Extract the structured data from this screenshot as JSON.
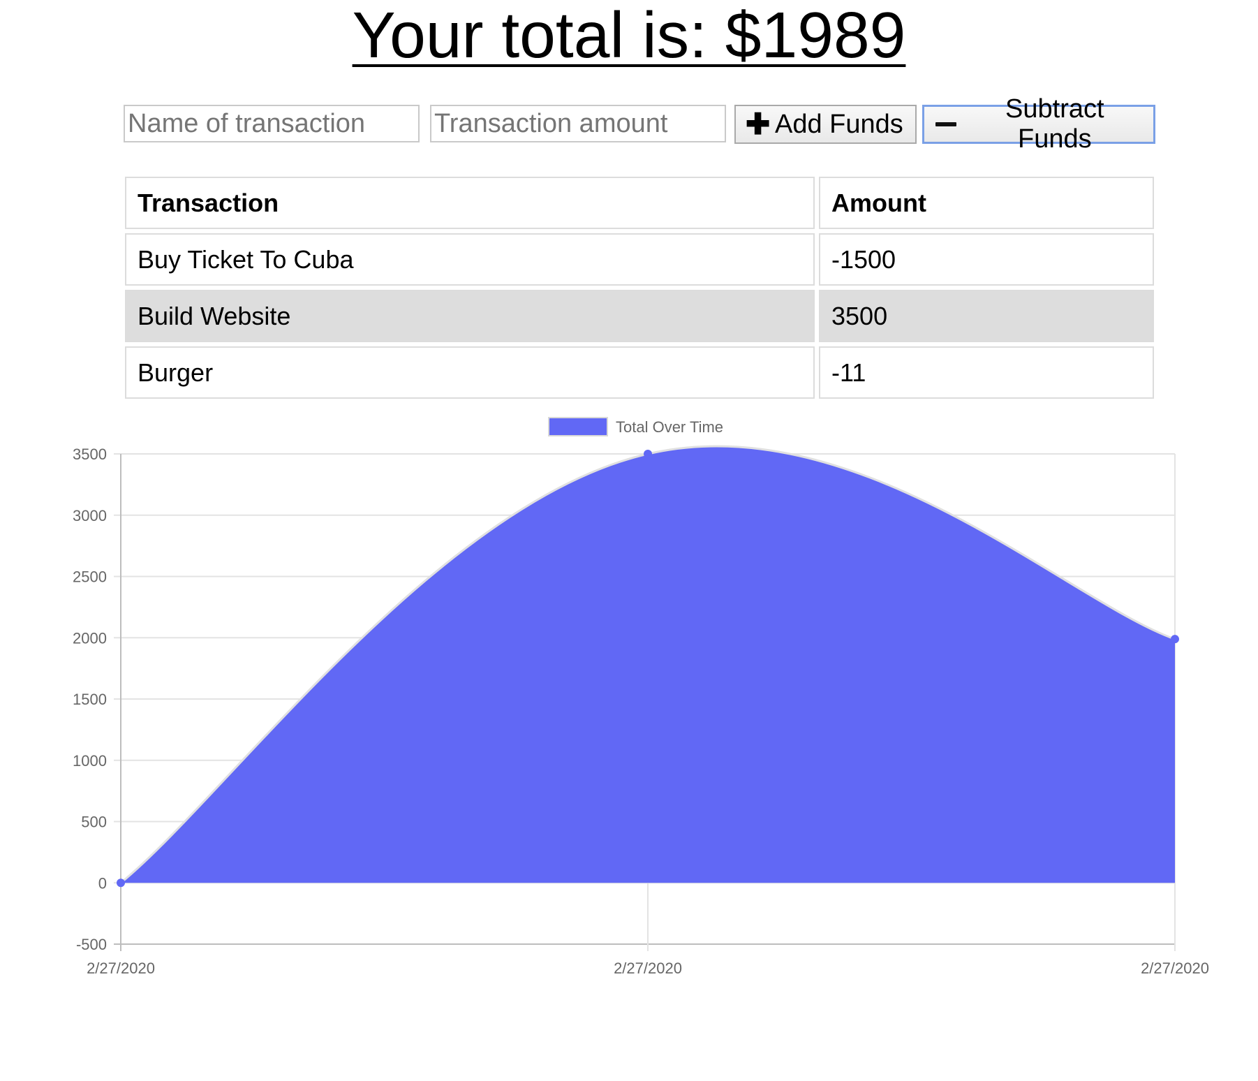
{
  "header": {
    "title": "Your total is: $1989"
  },
  "form": {
    "name_placeholder": "Name of transaction",
    "amount_placeholder": "Transaction amount",
    "add_label": "Add Funds",
    "subtract_label": "Subtract Funds",
    "add_icon": "plus-icon",
    "subtract_icon": "minus-icon"
  },
  "table": {
    "headers": [
      "Transaction",
      "Amount"
    ],
    "rows": [
      {
        "name": "Buy Ticket To Cuba",
        "amount": "-1500"
      },
      {
        "name": "Build Website",
        "amount": "3500"
      },
      {
        "name": "Burger",
        "amount": "-11"
      }
    ]
  },
  "chart_data": {
    "type": "area",
    "legend": {
      "label": "Total Over Time",
      "position": "top-center"
    },
    "x": [
      "2/27/2020",
      "2/27/2020",
      "2/27/2020"
    ],
    "series": [
      {
        "name": "Total Over Time",
        "values": [
          0,
          3500,
          1989
        ]
      }
    ],
    "ylim": [
      -500,
      3500
    ],
    "yticks": [
      3500,
      3000,
      2500,
      2000,
      1500,
      1000,
      500,
      0,
      -500
    ],
    "grid": true,
    "colors": {
      "fill": "#6168f5",
      "line": "#e0e0e0",
      "point": "#6168f5"
    }
  }
}
